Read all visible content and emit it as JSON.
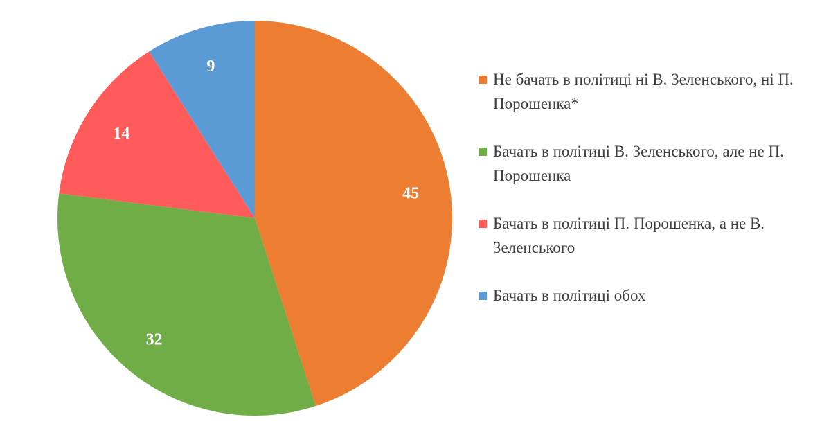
{
  "chart_data": {
    "type": "pie",
    "title": "",
    "start_angle_deg": 0,
    "direction": "clockwise",
    "legend_position": "right",
    "slices": [
      {
        "label": "Не бачать в політиці ні В. Зеленського, ні П. Порошенка*",
        "value": 45,
        "display": "45",
        "color": "#ED7D31"
      },
      {
        "label": "Бачать в політиці В. Зеленського, але не П. Порошенка",
        "value": 32,
        "display": "32",
        "color": "#70AD47"
      },
      {
        "label": "Бачать в політиці П. Порошенка, а не В. Зеленського",
        "value": 14,
        "display": "14",
        "color": "#FF5B5B"
      },
      {
        "label": "Бачать в політиці обох",
        "value": 9,
        "display": "9",
        "color": "#5B9BD5"
      }
    ]
  }
}
